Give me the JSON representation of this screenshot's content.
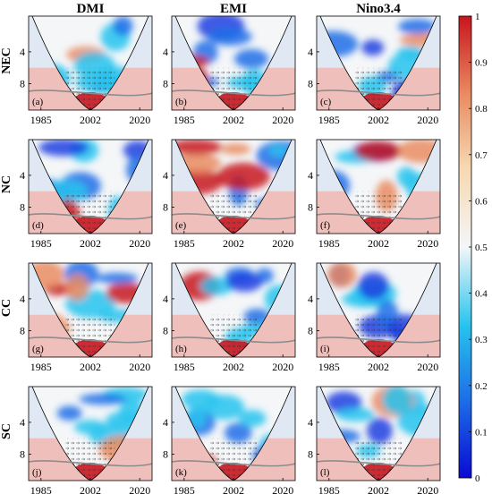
{
  "chart_data": {
    "type": "heatmap",
    "description_kind": "wavelet coherence panels",
    "column_titles": [
      "DMI",
      "EMI",
      "Nino3.4"
    ],
    "row_titles": [
      "NEC",
      "NC",
      "CC",
      "SC"
    ],
    "x_ticks": [
      "1985",
      "2002",
      "2020"
    ],
    "y_ticks": [
      "4",
      "8"
    ],
    "panel_labels": [
      "(a)",
      "(b)",
      "(c)",
      "(d)",
      "(e)",
      "(f)",
      "(g)",
      "(h)",
      "(i)",
      "(j)",
      "(k)",
      "(l)"
    ],
    "colorbar": {
      "range": [
        0,
        1
      ],
      "ticks": [
        "0",
        "0.1",
        "0.2",
        "0.3",
        "0.4",
        "0.5",
        "0.6",
        "0.7",
        "0.8",
        "0.9",
        "1"
      ],
      "colors": [
        "#0a0ad2",
        "#1d6fe8",
        "#27c3ee",
        "#f4f6f8",
        "#f6d9b2",
        "#ea8c62",
        "#c8151e"
      ]
    }
  }
}
